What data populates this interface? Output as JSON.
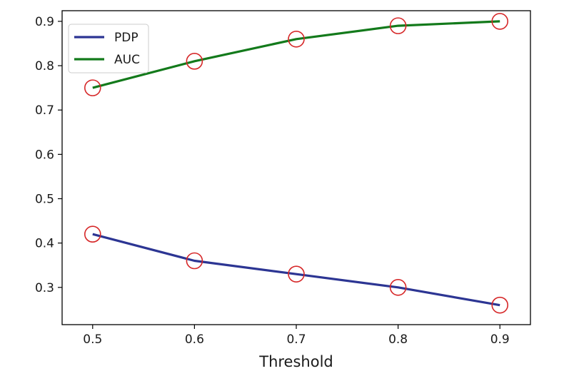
{
  "chart_data": {
    "type": "line",
    "title": "",
    "xlabel": "Threshold",
    "ylabel": "",
    "x": [
      0.5,
      0.6,
      0.7,
      0.8,
      0.9
    ],
    "x_ticks": [
      "0.5",
      "0.6",
      "0.7",
      "0.8",
      "0.9"
    ],
    "y_ticks": [
      "0.3",
      "0.4",
      "0.5",
      "0.6",
      "0.7",
      "0.8",
      "0.9"
    ],
    "xlim": [
      0.47,
      0.93
    ],
    "ylim": [
      0.216,
      0.924
    ],
    "grid": false,
    "legend_position": "upper-left",
    "marker": "open-circle",
    "marker_color": "#d62728",
    "series": [
      {
        "name": "PDP",
        "color": "#2c3593",
        "values": [
          0.42,
          0.36,
          0.33,
          0.3,
          0.26
        ]
      },
      {
        "name": "AUC",
        "color": "#137a1b",
        "values": [
          0.75,
          0.81,
          0.86,
          0.89,
          0.9
        ]
      }
    ]
  }
}
